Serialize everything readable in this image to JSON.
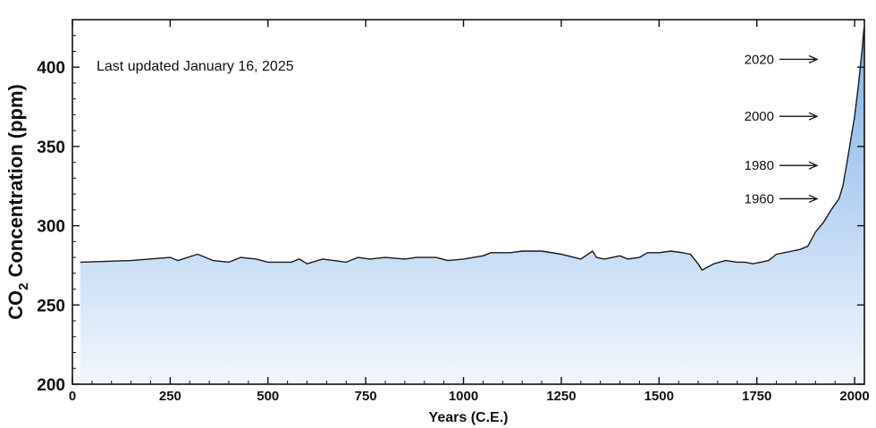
{
  "chart_data": {
    "type": "area",
    "title": "",
    "annotation_text": "Last updated January 16, 2025",
    "xlabel": "Years (C.E.)",
    "ylabel_main": "CO",
    "ylabel_sub": "2",
    "ylabel_rest": " Concentration (ppm)",
    "xlim": [
      0,
      2025
    ],
    "ylim": [
      200,
      430
    ],
    "x_ticks": [
      0,
      250,
      500,
      750,
      1000,
      1250,
      1500,
      1750,
      2000
    ],
    "y_ticks": [
      200,
      250,
      300,
      350,
      400
    ],
    "grid": false,
    "legend": "none",
    "colors": {
      "line": "#1a1a1a",
      "fill_top": "#7fb0e8",
      "fill_bottom": "#f2f7fd",
      "axis": "#111111"
    },
    "series": [
      {
        "x": [
          20,
          150,
          250,
          270,
          320,
          360,
          400,
          430,
          470,
          500,
          560,
          580,
          600,
          640,
          700,
          730,
          760,
          800,
          850,
          880,
          930,
          960,
          1000,
          1050,
          1070,
          1120,
          1150,
          1200,
          1250,
          1300,
          1330,
          1340,
          1360,
          1400,
          1420,
          1450,
          1470,
          1500,
          1530,
          1560,
          1580,
          1600,
          1610,
          1640,
          1670,
          1700,
          1720,
          1740,
          1760,
          1780,
          1800,
          1820,
          1840,
          1860,
          1880,
          1900,
          1920,
          1940,
          1960,
          1970,
          1980,
          1990,
          2000,
          2010,
          2020,
          2024
        ],
        "y": [
          277,
          278,
          280,
          278,
          282,
          278,
          277,
          280,
          279,
          277,
          277,
          279,
          276,
          279,
          277,
          280,
          279,
          280,
          279,
          280,
          280,
          278,
          279,
          281,
          283,
          283,
          284,
          284,
          282,
          279,
          284,
          280,
          279,
          281,
          279,
          280,
          283,
          283,
          284,
          283,
          282,
          276,
          272,
          276,
          278,
          277,
          277,
          276,
          277,
          278,
          282,
          283,
          284,
          285,
          287,
          296,
          302,
          310,
          317,
          325,
          339,
          354,
          369,
          389,
          413,
          425
        ]
      }
    ],
    "annotations": [
      {
        "label": "2020",
        "y": 405
      },
      {
        "label": "2000",
        "y": 369
      },
      {
        "label": "1980",
        "y": 338
      },
      {
        "label": "1960",
        "y": 317
      }
    ]
  }
}
